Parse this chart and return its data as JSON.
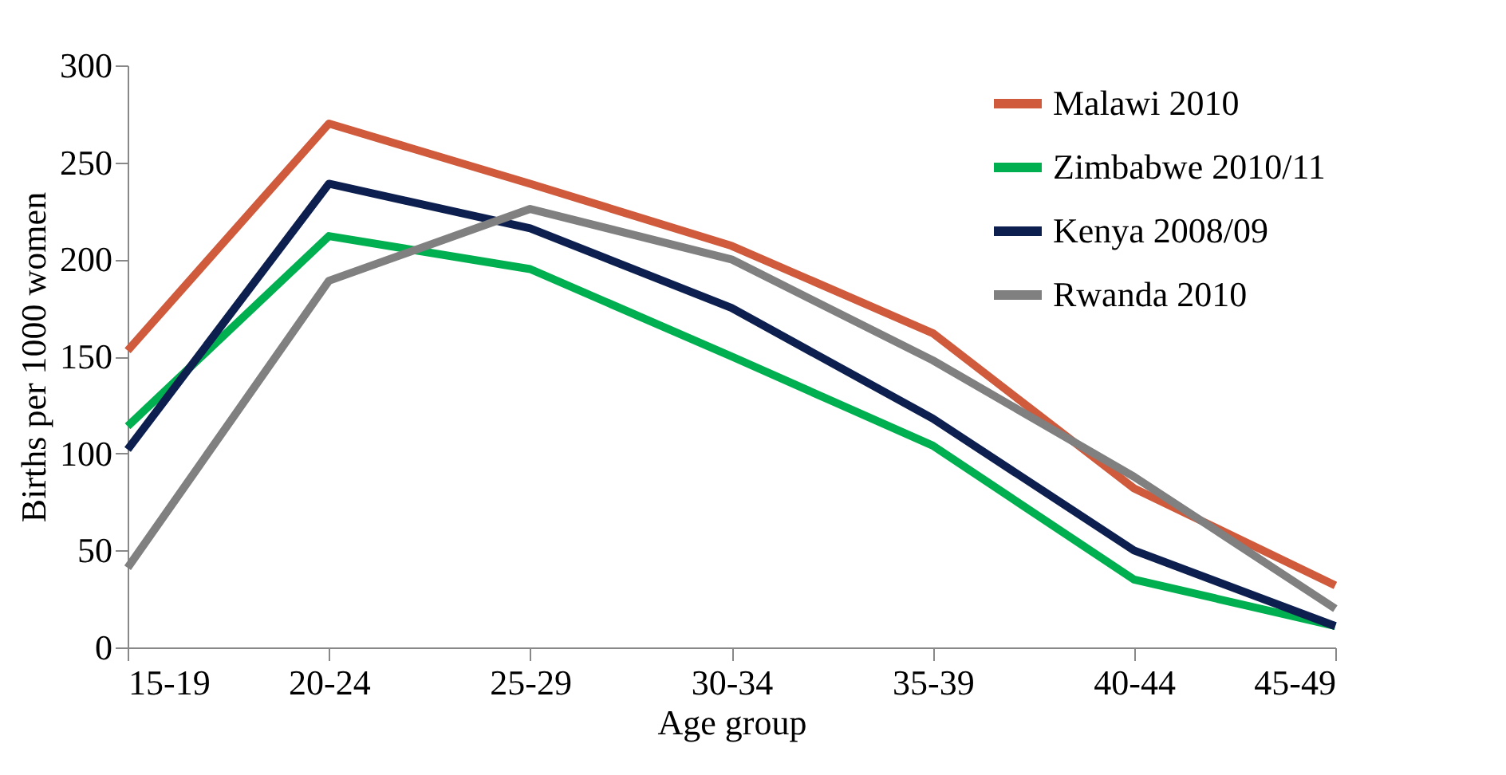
{
  "chart_data": {
    "type": "line",
    "xlabel": "Age group",
    "ylabel": "Births per 1000 women",
    "categories": [
      "15-19",
      "20-24",
      "25-29",
      "30-34",
      "35-39",
      "40-44",
      "45-49"
    ],
    "ylim": [
      0,
      300
    ],
    "yticks": [
      0,
      50,
      100,
      150,
      200,
      250,
      300
    ],
    "grid": false,
    "legend": "top right",
    "marker": "none",
    "line_style": "solid",
    "series": [
      {
        "name": "Malawi 2010",
        "color": "#d05a3c",
        "values": [
          153,
          270,
          239,
          207,
          162,
          82,
          32
        ]
      },
      {
        "name": "Zimbabwe 2010/11",
        "color": "#00b050",
        "values": [
          114,
          212,
          195,
          150,
          104,
          35,
          11
        ]
      },
      {
        "name": "Kenya 2008/09",
        "color": "#0d1f4f",
        "values": [
          102,
          239,
          216,
          175,
          118,
          50,
          11
        ]
      },
      {
        "name": "Rwanda 2010",
        "color": "#808080",
        "values": [
          41,
          189,
          226,
          200,
          148,
          88,
          20
        ]
      }
    ]
  }
}
